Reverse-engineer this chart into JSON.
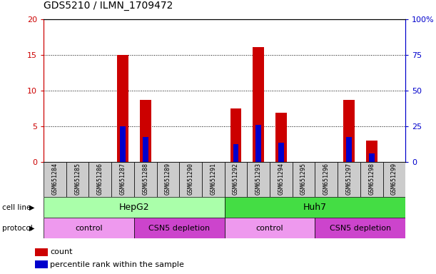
{
  "title": "GDS5210 / ILMN_1709472",
  "samples": [
    "GSM651284",
    "GSM651285",
    "GSM651286",
    "GSM651287",
    "GSM651288",
    "GSM651289",
    "GSM651290",
    "GSM651291",
    "GSM651292",
    "GSM651293",
    "GSM651294",
    "GSM651295",
    "GSM651296",
    "GSM651297",
    "GSM651298",
    "GSM651299"
  ],
  "counts": [
    0,
    0,
    0,
    15.0,
    8.7,
    0,
    0,
    0,
    7.5,
    16.1,
    6.9,
    0,
    0,
    8.7,
    3.0,
    0
  ],
  "percentile_ranks": [
    0,
    0,
    0,
    5.0,
    3.5,
    0,
    0,
    0,
    2.5,
    5.2,
    2.7,
    0,
    0,
    3.5,
    1.2,
    0
  ],
  "count_color": "#cc0000",
  "percentile_color": "#0000cc",
  "ylim_left": [
    0,
    20
  ],
  "ylim_right": [
    0,
    100
  ],
  "yticks_left": [
    0,
    5,
    10,
    15,
    20
  ],
  "yticks_right": [
    0,
    25,
    50,
    75,
    100
  ],
  "ytick_labels_left": [
    "0",
    "5",
    "10",
    "15",
    "20"
  ],
  "ytick_labels_right": [
    "0",
    "25",
    "50",
    "75",
    "100%"
  ],
  "cell_line_labels": [
    {
      "text": "HepG2",
      "start": 0,
      "end": 7,
      "color": "#aaffaa"
    },
    {
      "text": "Huh7",
      "start": 8,
      "end": 15,
      "color": "#44dd44"
    }
  ],
  "protocol_labels": [
    {
      "text": "control",
      "start": 0,
      "end": 3,
      "color": "#ee99ee"
    },
    {
      "text": "CSN5 depletion",
      "start": 4,
      "end": 7,
      "color": "#cc44cc"
    },
    {
      "text": "control",
      "start": 8,
      "end": 11,
      "color": "#ee99ee"
    },
    {
      "text": "CSN5 depletion",
      "start": 12,
      "end": 15,
      "color": "#cc44cc"
    }
  ],
  "legend_count_label": "count",
  "legend_pct_label": "percentile rank within the sample",
  "tick_color_left": "#cc0000",
  "tick_color_right": "#0000cc",
  "grid_color": "#000000",
  "background_color": "#ffffff",
  "plot_bg": "#ffffff",
  "sample_bg": "#cccccc"
}
